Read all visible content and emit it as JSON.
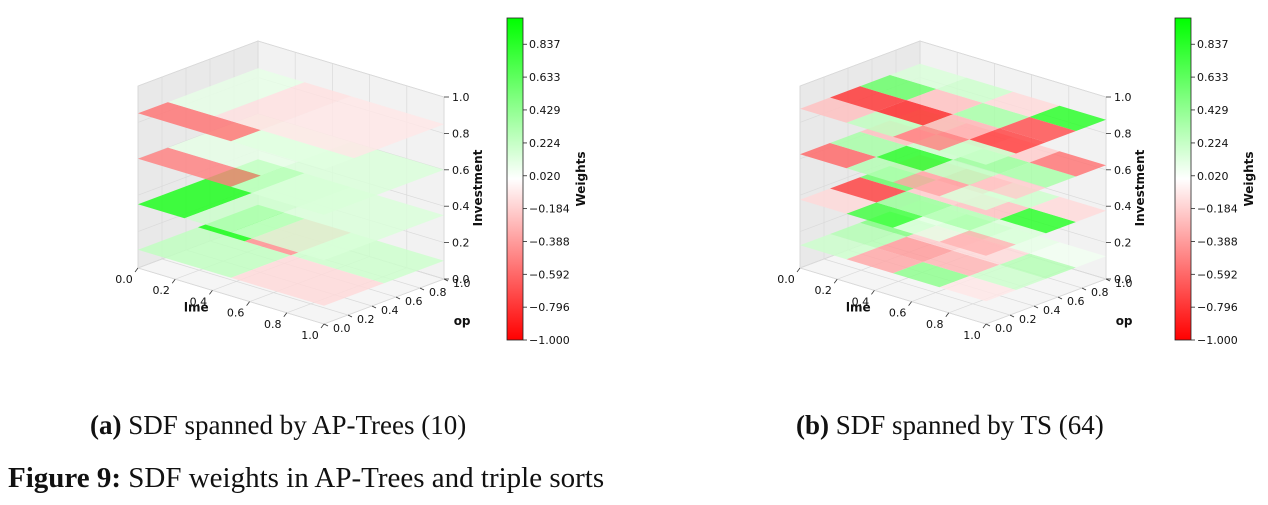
{
  "chart_data": [
    {
      "type": "heatmap",
      "subtitle_tag": "(a)",
      "subtitle_text": "SDF spanned by AP-Trees (10)",
      "xlabel": "lme",
      "ylabel": "op",
      "zlabel": "Investment",
      "colorbar_label": "Weights",
      "colorbar_ticks": [
        "0.837",
        "0.633",
        "0.429",
        "0.224",
        "0.020",
        "−0.184",
        "−0.388",
        "−0.592",
        "−0.796",
        "−1.000"
      ],
      "clim": [
        -1.0,
        1.0
      ],
      "xticks": [
        "0.0",
        "0.2",
        "0.4",
        "0.6",
        "0.8",
        "1.0"
      ],
      "yticks": [
        "0.0",
        "0.2",
        "0.4",
        "0.6",
        "0.8",
        "1.0"
      ],
      "zticks": [
        "0.0",
        "0.2",
        "0.4",
        "0.6",
        "0.8",
        "1.0"
      ],
      "layers": [
        {
          "z": 0.1,
          "cells": [
            {
              "x": [
                0.0,
                0.5
              ],
              "y": [
                0.0,
                0.5
              ],
              "w": 0.25
            },
            {
              "x": [
                0.5,
                1.0
              ],
              "y": [
                0.0,
                0.5
              ],
              "w": -0.15
            },
            {
              "x": [
                0.0,
                0.25
              ],
              "y": [
                0.5,
                1.0
              ],
              "w": 0.95
            },
            {
              "x": [
                0.25,
                0.5
              ],
              "y": [
                0.5,
                1.0
              ],
              "w": -0.45
            },
            {
              "x": [
                0.5,
                1.0
              ],
              "y": [
                0.5,
                1.0
              ],
              "w": 0.2
            }
          ]
        },
        {
          "z": 0.35,
          "cells": [
            {
              "x": [
                0.0,
                0.25
              ],
              "y": [
                0.0,
                1.0
              ],
              "w": 0.9
            },
            {
              "x": [
                0.25,
                0.5
              ],
              "y": [
                0.0,
                1.0
              ],
              "w": 0.2
            },
            {
              "x": [
                0.5,
                1.0
              ],
              "y": [
                0.0,
                1.0
              ],
              "w": 0.15
            }
          ]
        },
        {
          "z": 0.6,
          "cells": [
            {
              "x": [
                0.0,
                0.5
              ],
              "y": [
                0.0,
                0.25
              ],
              "w": -0.5
            },
            {
              "x": [
                0.0,
                0.5
              ],
              "y": [
                0.25,
                1.0
              ],
              "w": 0.1
            },
            {
              "x": [
                0.5,
                1.0
              ],
              "y": [
                0.0,
                1.0
              ],
              "w": 0.15
            }
          ]
        },
        {
          "z": 0.85,
          "cells": [
            {
              "x": [
                0.0,
                0.5
              ],
              "y": [
                0.0,
                0.25
              ],
              "w": -0.55
            },
            {
              "x": [
                0.0,
                0.25
              ],
              "y": [
                0.25,
                1.0
              ],
              "w": 0.1
            },
            {
              "x": [
                0.25,
                0.5
              ],
              "y": [
                0.25,
                1.0
              ],
              "w": -0.12
            },
            {
              "x": [
                0.5,
                1.0
              ],
              "y": [
                0.0,
                0.25
              ],
              "w": 0.12
            },
            {
              "x": [
                0.5,
                1.0
              ],
              "y": [
                0.25,
                1.0
              ],
              "w": -0.1
            }
          ]
        }
      ]
    },
    {
      "type": "heatmap",
      "subtitle_tag": "(b)",
      "subtitle_text": "SDF spanned by TS (64)",
      "xlabel": "lme",
      "ylabel": "op",
      "zlabel": "Investment",
      "colorbar_label": "Weights",
      "colorbar_ticks": [
        "0.837",
        "0.633",
        "0.429",
        "0.224",
        "0.020",
        "−0.184",
        "−0.388",
        "−0.592",
        "−0.796",
        "−1.000"
      ],
      "clim": [
        -1.0,
        1.0
      ],
      "xticks": [
        "0.0",
        "0.2",
        "0.4",
        "0.6",
        "0.8",
        "1.0"
      ],
      "yticks": [
        "0.0",
        "0.2",
        "0.4",
        "0.6",
        "0.8",
        "1.0"
      ],
      "zticks": [
        "0.0",
        "0.2",
        "0.4",
        "0.6",
        "0.8",
        "1.0"
      ],
      "layers": [
        {
          "z": 0.125,
          "grid": [
            [
              0.2,
              0.3,
              0.5,
              0.15
            ],
            [
              -0.35,
              -0.4,
              -0.2,
              0.35
            ],
            [
              0.45,
              -0.3,
              -0.15,
              0.1
            ],
            [
              -0.1,
              0.2,
              0.3,
              0.05
            ]
          ]
        },
        {
          "z": 0.375,
          "grid": [
            [
              -0.15,
              -0.75,
              0.6,
              -0.2
            ],
            [
              0.75,
              0.4,
              -0.2,
              -0.4
            ],
            [
              0.1,
              0.3,
              -0.25,
              0.2
            ],
            [
              -0.3,
              0.15,
              0.85,
              -0.15
            ]
          ]
        },
        {
          "z": 0.625,
          "grid": [
            [
              -0.6,
              0.35,
              -0.25,
              0.15
            ],
            [
              0.3,
              0.85,
              0.2,
              -0.3
            ],
            [
              -0.35,
              0.25,
              0.4,
              -0.2
            ],
            [
              0.15,
              -0.2,
              0.35,
              -0.55
            ]
          ]
        },
        {
          "z": 0.875,
          "grid": [
            [
              -0.25,
              -0.8,
              0.6,
              0.15
            ],
            [
              0.25,
              -0.85,
              -0.25,
              0.2
            ],
            [
              -0.5,
              -0.3,
              0.35,
              -0.15
            ],
            [
              0.2,
              -0.75,
              -0.7,
              0.85
            ]
          ]
        }
      ]
    }
  ],
  "caption": {
    "label": "Figure 9:",
    "text": "SDF weights in AP-Trees and triple sorts"
  }
}
